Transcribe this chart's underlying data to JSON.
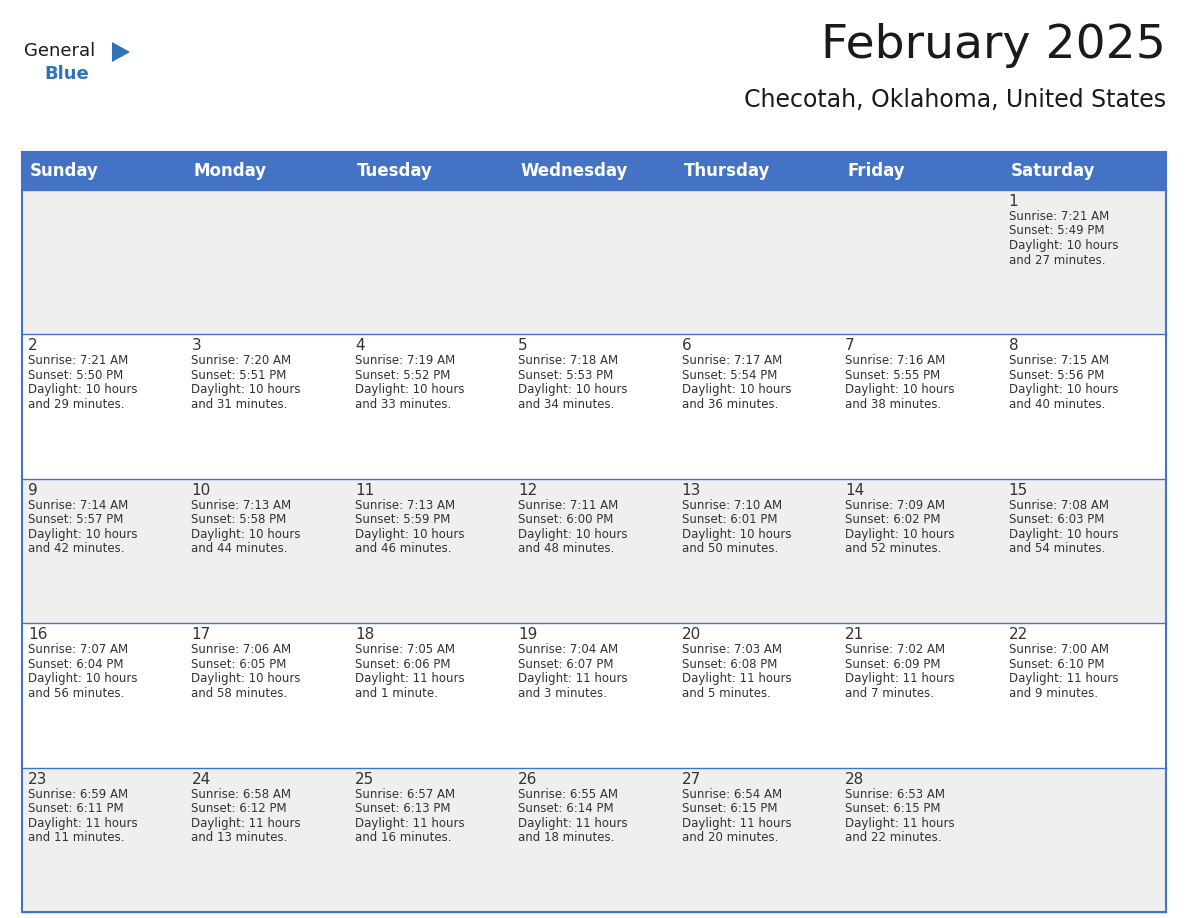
{
  "title": "February 2025",
  "subtitle": "Checotah, Oklahoma, United States",
  "title_fontsize": 34,
  "subtitle_fontsize": 17,
  "header_color": "#4472C4",
  "header_text_color": "#FFFFFF",
  "header_fontsize": 12,
  "day_names": [
    "Sunday",
    "Monday",
    "Tuesday",
    "Wednesday",
    "Thursday",
    "Friday",
    "Saturday"
  ],
  "cell_bg_odd": "#EFEFEF",
  "cell_bg_even": "#FFFFFF",
  "line_color": "#4472C4",
  "day_num_color": "#333333",
  "day_num_fontsize": 11,
  "info_fontsize": 8.5,
  "info_color": "#333333",
  "logo_general_color": "#1a1a1a",
  "logo_blue_color": "#2E75B6",
  "weeks": [
    [
      {
        "day": null,
        "sunrise": null,
        "sunset": null,
        "daylight": null
      },
      {
        "day": null,
        "sunrise": null,
        "sunset": null,
        "daylight": null
      },
      {
        "day": null,
        "sunrise": null,
        "sunset": null,
        "daylight": null
      },
      {
        "day": null,
        "sunrise": null,
        "sunset": null,
        "daylight": null
      },
      {
        "day": null,
        "sunrise": null,
        "sunset": null,
        "daylight": null
      },
      {
        "day": null,
        "sunrise": null,
        "sunset": null,
        "daylight": null
      },
      {
        "day": 1,
        "sunrise": "7:21 AM",
        "sunset": "5:49 PM",
        "daylight": "10 hours\nand 27 minutes."
      }
    ],
    [
      {
        "day": 2,
        "sunrise": "7:21 AM",
        "sunset": "5:50 PM",
        "daylight": "10 hours\nand 29 minutes."
      },
      {
        "day": 3,
        "sunrise": "7:20 AM",
        "sunset": "5:51 PM",
        "daylight": "10 hours\nand 31 minutes."
      },
      {
        "day": 4,
        "sunrise": "7:19 AM",
        "sunset": "5:52 PM",
        "daylight": "10 hours\nand 33 minutes."
      },
      {
        "day": 5,
        "sunrise": "7:18 AM",
        "sunset": "5:53 PM",
        "daylight": "10 hours\nand 34 minutes."
      },
      {
        "day": 6,
        "sunrise": "7:17 AM",
        "sunset": "5:54 PM",
        "daylight": "10 hours\nand 36 minutes."
      },
      {
        "day": 7,
        "sunrise": "7:16 AM",
        "sunset": "5:55 PM",
        "daylight": "10 hours\nand 38 minutes."
      },
      {
        "day": 8,
        "sunrise": "7:15 AM",
        "sunset": "5:56 PM",
        "daylight": "10 hours\nand 40 minutes."
      }
    ],
    [
      {
        "day": 9,
        "sunrise": "7:14 AM",
        "sunset": "5:57 PM",
        "daylight": "10 hours\nand 42 minutes."
      },
      {
        "day": 10,
        "sunrise": "7:13 AM",
        "sunset": "5:58 PM",
        "daylight": "10 hours\nand 44 minutes."
      },
      {
        "day": 11,
        "sunrise": "7:13 AM",
        "sunset": "5:59 PM",
        "daylight": "10 hours\nand 46 minutes."
      },
      {
        "day": 12,
        "sunrise": "7:11 AM",
        "sunset": "6:00 PM",
        "daylight": "10 hours\nand 48 minutes."
      },
      {
        "day": 13,
        "sunrise": "7:10 AM",
        "sunset": "6:01 PM",
        "daylight": "10 hours\nand 50 minutes."
      },
      {
        "day": 14,
        "sunrise": "7:09 AM",
        "sunset": "6:02 PM",
        "daylight": "10 hours\nand 52 minutes."
      },
      {
        "day": 15,
        "sunrise": "7:08 AM",
        "sunset": "6:03 PM",
        "daylight": "10 hours\nand 54 minutes."
      }
    ],
    [
      {
        "day": 16,
        "sunrise": "7:07 AM",
        "sunset": "6:04 PM",
        "daylight": "10 hours\nand 56 minutes."
      },
      {
        "day": 17,
        "sunrise": "7:06 AM",
        "sunset": "6:05 PM",
        "daylight": "10 hours\nand 58 minutes."
      },
      {
        "day": 18,
        "sunrise": "7:05 AM",
        "sunset": "6:06 PM",
        "daylight": "11 hours\nand 1 minute."
      },
      {
        "day": 19,
        "sunrise": "7:04 AM",
        "sunset": "6:07 PM",
        "daylight": "11 hours\nand 3 minutes."
      },
      {
        "day": 20,
        "sunrise": "7:03 AM",
        "sunset": "6:08 PM",
        "daylight": "11 hours\nand 5 minutes."
      },
      {
        "day": 21,
        "sunrise": "7:02 AM",
        "sunset": "6:09 PM",
        "daylight": "11 hours\nand 7 minutes."
      },
      {
        "day": 22,
        "sunrise": "7:00 AM",
        "sunset": "6:10 PM",
        "daylight": "11 hours\nand 9 minutes."
      }
    ],
    [
      {
        "day": 23,
        "sunrise": "6:59 AM",
        "sunset": "6:11 PM",
        "daylight": "11 hours\nand 11 minutes."
      },
      {
        "day": 24,
        "sunrise": "6:58 AM",
        "sunset": "6:12 PM",
        "daylight": "11 hours\nand 13 minutes."
      },
      {
        "day": 25,
        "sunrise": "6:57 AM",
        "sunset": "6:13 PM",
        "daylight": "11 hours\nand 16 minutes."
      },
      {
        "day": 26,
        "sunrise": "6:55 AM",
        "sunset": "6:14 PM",
        "daylight": "11 hours\nand 18 minutes."
      },
      {
        "day": 27,
        "sunrise": "6:54 AM",
        "sunset": "6:15 PM",
        "daylight": "11 hours\nand 20 minutes."
      },
      {
        "day": 28,
        "sunrise": "6:53 AM",
        "sunset": "6:15 PM",
        "daylight": "11 hours\nand 22 minutes."
      },
      {
        "day": null,
        "sunrise": null,
        "sunset": null,
        "daylight": null
      }
    ]
  ]
}
